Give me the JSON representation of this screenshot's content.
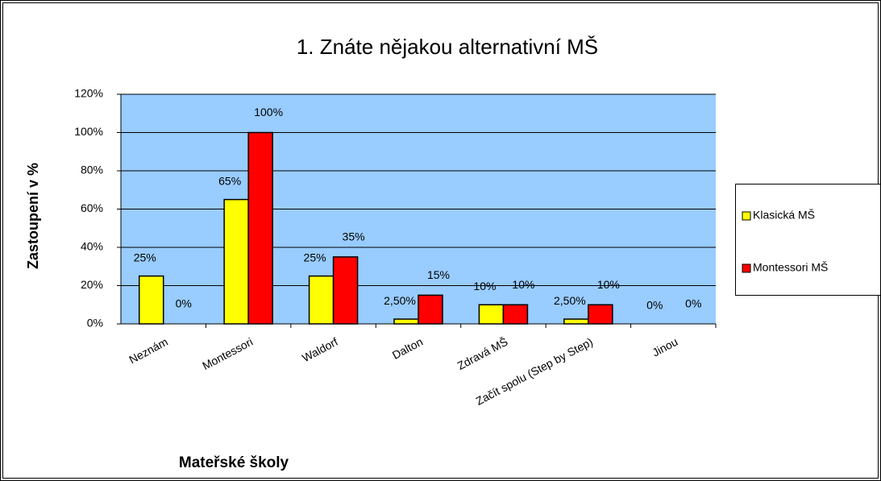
{
  "chart_data": {
    "type": "bar",
    "title": "1. Znáte nějakou alternativní MŠ",
    "x_label": "Mateřské školy",
    "y_label": "Zastoupení v %",
    "categories": [
      "Neznám",
      "Montessori",
      "Waldorf",
      "Dalton",
      "Zdravá MŠ",
      "Začít spolu (Step by Step)",
      "Jinou"
    ],
    "series": [
      {
        "name": "Klasická MŠ",
        "color": "#ffff00",
        "values": [
          25,
          65,
          25,
          2.5,
          10,
          2.5,
          0
        ],
        "value_labels": [
          "25%",
          "65%",
          "25%",
          "2,50%",
          "10%",
          "2,50%",
          "0%"
        ]
      },
      {
        "name": "Montessori MŠ",
        "color": "#ff0000",
        "values": [
          0,
          100,
          35,
          15,
          10,
          10,
          0
        ],
        "value_labels": [
          "0%",
          "100%",
          "35%",
          "15%",
          "10%",
          "10%",
          "0%"
        ]
      }
    ],
    "ylim": [
      0,
      120
    ],
    "yticks": [
      {
        "value": 0,
        "label": "0%"
      },
      {
        "value": 20,
        "label": "20%"
      },
      {
        "value": 40,
        "label": "40%"
      },
      {
        "value": 60,
        "label": "60%"
      },
      {
        "value": 80,
        "label": "80%"
      },
      {
        "value": 100,
        "label": "100%"
      },
      {
        "value": 120,
        "label": "120%"
      }
    ],
    "grid": true,
    "legend": "right",
    "plot_background": "#99ccff"
  }
}
